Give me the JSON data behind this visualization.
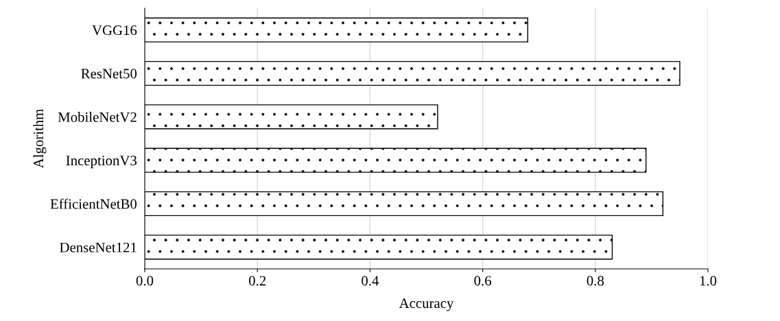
{
  "chart_data": {
    "type": "bar",
    "orientation": "horizontal",
    "xlabel": "Accuracy",
    "ylabel": "Algorithm",
    "categories": [
      "VGG16",
      "ResNet50",
      "MobileNetV2",
      "InceptionV3",
      "EfficientNetB0",
      "DenseNet121"
    ],
    "values": [
      0.68,
      0.95,
      0.52,
      0.89,
      0.92,
      0.83
    ],
    "color": "#000000",
    "xlim": [
      0,
      1
    ],
    "xticks": [
      {
        "value": 0,
        "label": "0.0"
      },
      0.2,
      0.4,
      0.6,
      0.8,
      {
        "value": 1,
        "label": "1.0"
      }
    ],
    "grid": "x"
  }
}
